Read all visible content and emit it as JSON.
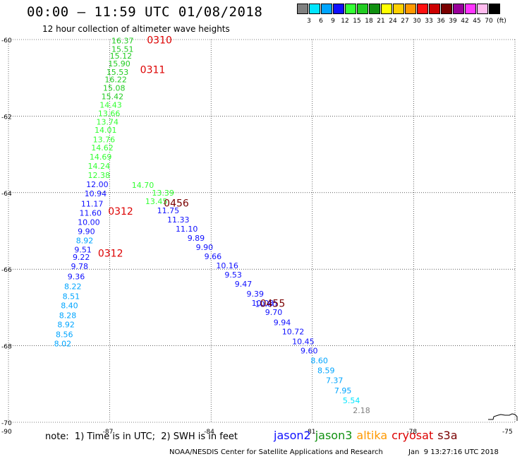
{
  "header": {
    "title": "00:00 – 11:59 UTC 01/08/2018",
    "subtitle": "12 hour collection of altimeter wave heights"
  },
  "color_scale": {
    "unit": "(ft)",
    "swatches": [
      {
        "color": "#808080",
        "label": "3"
      },
      {
        "color": "#00e5ff",
        "label": "6"
      },
      {
        "color": "#00a5ff",
        "label": "9"
      },
      {
        "color": "#1010ff",
        "label": "12"
      },
      {
        "color": "#33ff33",
        "label": "15"
      },
      {
        "color": "#22cc22",
        "label": "18"
      },
      {
        "color": "#109010",
        "label": "21"
      },
      {
        "color": "#ffff00",
        "label": "24"
      },
      {
        "color": "#ffd000",
        "label": "27"
      },
      {
        "color": "#ff9900",
        "label": "30"
      },
      {
        "color": "#ff1010",
        "label": "33"
      },
      {
        "color": "#cc0000",
        "label": "36"
      },
      {
        "color": "#7a0000",
        "label": "39"
      },
      {
        "color": "#990099",
        "label": "42"
      },
      {
        "color": "#ff33ff",
        "label": "45"
      },
      {
        "color": "#ffbbee",
        "label": "70"
      },
      {
        "color": "#000000",
        "label": ""
      }
    ]
  },
  "map": {
    "lat_ticks": [
      "-60",
      "-62",
      "-64",
      "-66",
      "-68",
      "-70"
    ],
    "lon_ticks": [
      "-90",
      "-87",
      "-84",
      "-81",
      "-78",
      "-75"
    ],
    "time_labels": [
      {
        "text": "0310",
        "color": "#dd0000",
        "lon": -85.9,
        "lat": -60.1
      },
      {
        "text": "0311",
        "color": "#dd0000",
        "lon": -86.1,
        "lat": -60.88
      },
      {
        "text": "0456",
        "color": "#7a0000",
        "lon": -85.4,
        "lat": -64.36
      },
      {
        "text": "0312",
        "color": "#dd0000",
        "lon": -87.05,
        "lat": -64.58
      },
      {
        "text": "0312",
        "color": "#dd0000",
        "lon": -87.35,
        "lat": -65.67
      },
      {
        "text": "0455",
        "color": "#7a0000",
        "lon": -82.55,
        "lat": -66.98
      }
    ],
    "observations": [
      {
        "v": "16.37",
        "c": "#22cc22",
        "lon": -86.95,
        "lat": -60.1
      },
      {
        "v": "15.51",
        "c": "#22cc22",
        "lon": -86.95,
        "lat": -60.32
      },
      {
        "v": "15.12",
        "c": "#22cc22",
        "lon": -87.0,
        "lat": -60.5
      },
      {
        "v": "15.90",
        "c": "#22cc22",
        "lon": -87.05,
        "lat": -60.7
      },
      {
        "v": "15.53",
        "c": "#22cc22",
        "lon": -87.1,
        "lat": -60.92
      },
      {
        "v": "16.22",
        "c": "#22cc22",
        "lon": -87.15,
        "lat": -61.12
      },
      {
        "v": "15.08",
        "c": "#22cc22",
        "lon": -87.2,
        "lat": -61.34
      },
      {
        "v": "15.42",
        "c": "#22cc22",
        "lon": -87.25,
        "lat": -61.56
      },
      {
        "v": "14.43",
        "c": "#33ff33",
        "lon": -87.3,
        "lat": -61.78
      },
      {
        "v": "13.66",
        "c": "#33ff33",
        "lon": -87.35,
        "lat": -62.0
      },
      {
        "v": "13.74",
        "c": "#33ff33",
        "lon": -87.4,
        "lat": -62.22
      },
      {
        "v": "14.01",
        "c": "#33ff33",
        "lon": -87.45,
        "lat": -62.44
      },
      {
        "v": "13.76",
        "c": "#33ff33",
        "lon": -87.5,
        "lat": -62.68
      },
      {
        "v": "14.62",
        "c": "#33ff33",
        "lon": -87.55,
        "lat": -62.9
      },
      {
        "v": "14.69",
        "c": "#33ff33",
        "lon": -87.6,
        "lat": -63.14
      },
      {
        "v": "14.24",
        "c": "#33ff33",
        "lon": -87.65,
        "lat": -63.38
      },
      {
        "v": "12.38",
        "c": "#33ff33",
        "lon": -87.65,
        "lat": -63.62
      },
      {
        "v": "12.00",
        "c": "#1010ff",
        "lon": -87.7,
        "lat": -63.86
      },
      {
        "v": "10.94",
        "c": "#1010ff",
        "lon": -87.75,
        "lat": -64.1
      },
      {
        "v": "11.17",
        "c": "#1010ff",
        "lon": -87.85,
        "lat": -64.36
      },
      {
        "v": "11.60",
        "c": "#1010ff",
        "lon": -87.9,
        "lat": -64.6
      },
      {
        "v": "10.00",
        "c": "#1010ff",
        "lon": -87.95,
        "lat": -64.84
      },
      {
        "v": "9.90",
        "c": "#1010ff",
        "lon": -87.95,
        "lat": -65.08
      },
      {
        "v": "8.92",
        "c": "#00a5ff",
        "lon": -88.0,
        "lat": -65.32
      },
      {
        "v": "9.51",
        "c": "#1010ff",
        "lon": -88.05,
        "lat": -65.56
      },
      {
        "v": "9.22",
        "c": "#1010ff",
        "lon": -88.1,
        "lat": -65.76
      },
      {
        "v": "9.78",
        "c": "#1010ff",
        "lon": -88.15,
        "lat": -66.0
      },
      {
        "v": "9.36",
        "c": "#1010ff",
        "lon": -88.25,
        "lat": -66.26
      },
      {
        "v": "8.22",
        "c": "#00a5ff",
        "lon": -88.35,
        "lat": -66.52
      },
      {
        "v": "8.51",
        "c": "#00a5ff",
        "lon": -88.4,
        "lat": -66.78
      },
      {
        "v": "8.40",
        "c": "#00a5ff",
        "lon": -88.45,
        "lat": -67.02
      },
      {
        "v": "8.28",
        "c": "#00a5ff",
        "lon": -88.5,
        "lat": -67.28
      },
      {
        "v": "8.92",
        "c": "#00a5ff",
        "lon": -88.55,
        "lat": -67.52
      },
      {
        "v": "8.56",
        "c": "#00a5ff",
        "lon": -88.6,
        "lat": -67.78
      },
      {
        "v": "8.02",
        "c": "#00a5ff",
        "lon": -88.65,
        "lat": -68.02
      },
      {
        "v": "14.70",
        "c": "#33ff33",
        "lon": -86.35,
        "lat": -63.87
      },
      {
        "v": "13.39",
        "c": "#33ff33",
        "lon": -85.75,
        "lat": -64.08
      },
      {
        "v": "13.45",
        "c": "#33ff33",
        "lon": -85.95,
        "lat": -64.3
      },
      {
        "v": "11.75",
        "c": "#1010ff",
        "lon": -85.6,
        "lat": -64.54
      },
      {
        "v": "11.33",
        "c": "#1010ff",
        "lon": -85.3,
        "lat": -64.78
      },
      {
        "v": "11.10",
        "c": "#1010ff",
        "lon": -85.05,
        "lat": -65.02
      },
      {
        "v": "9.89",
        "c": "#1010ff",
        "lon": -84.7,
        "lat": -65.26
      },
      {
        "v": "9.90",
        "c": "#1010ff",
        "lon": -84.45,
        "lat": -65.5
      },
      {
        "v": "9.66",
        "c": "#1010ff",
        "lon": -84.2,
        "lat": -65.74
      },
      {
        "v": "10.16",
        "c": "#1010ff",
        "lon": -83.85,
        "lat": -65.98
      },
      {
        "v": "9.53",
        "c": "#1010ff",
        "lon": -83.6,
        "lat": -66.22
      },
      {
        "v": "9.47",
        "c": "#1010ff",
        "lon": -83.3,
        "lat": -66.46
      },
      {
        "v": "9.39",
        "c": "#1010ff",
        "lon": -82.95,
        "lat": -66.72
      },
      {
        "v": "10.08",
        "c": "#1010ff",
        "lon": -82.8,
        "lat": -66.96
      },
      {
        "v": "10.60",
        "c": "#1010ff",
        "lon": -82.7,
        "lat": -66.98
      },
      {
        "v": "9.70",
        "c": "#1010ff",
        "lon": -82.4,
        "lat": -67.2
      },
      {
        "v": "9.94",
        "c": "#1010ff",
        "lon": -82.15,
        "lat": -67.46
      },
      {
        "v": "10.72",
        "c": "#1010ff",
        "lon": -81.9,
        "lat": -67.7
      },
      {
        "v": "10.45",
        "c": "#1010ff",
        "lon": -81.6,
        "lat": -67.96
      },
      {
        "v": "9.60",
        "c": "#1010ff",
        "lon": -81.35,
        "lat": -68.2
      },
      {
        "v": "8.60",
        "c": "#00a5ff",
        "lon": -81.05,
        "lat": -68.46
      },
      {
        "v": "8.59",
        "c": "#00a5ff",
        "lon": -80.85,
        "lat": -68.72
      },
      {
        "v": "7.37",
        "c": "#00a5ff",
        "lon": -80.6,
        "lat": -68.98
      },
      {
        "v": "7.95",
        "c": "#00a5ff",
        "lon": -80.35,
        "lat": -69.24
      },
      {
        "v": "5.54",
        "c": "#00e5ff",
        "lon": -80.1,
        "lat": -69.5
      },
      {
        "v": "2.18",
        "c": "#808080",
        "lon": -79.8,
        "lat": -69.76
      }
    ]
  },
  "note": "note:  1) Time is in UTC;  2) SWH is in feet",
  "legend": [
    {
      "label": "jason2",
      "color": "#1010ff"
    },
    {
      "label": "jason3",
      "color": "#109010"
    },
    {
      "label": "altika",
      "color": "#ff9900"
    },
    {
      "label": "cryosat",
      "color": "#dd0000"
    },
    {
      "label": "s3a",
      "color": "#7a0000"
    }
  ],
  "footer": {
    "credit": "NOAA/NESDIS Center for Satellite Applications and Research",
    "timestamp": "Jan  9 13:27:16 UTC 2018"
  }
}
